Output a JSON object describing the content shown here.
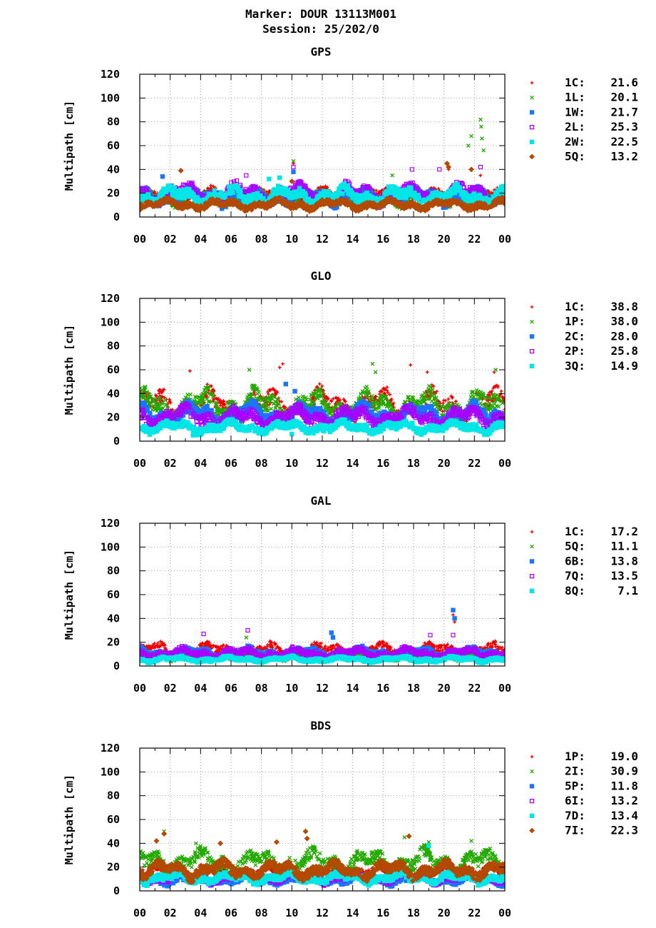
{
  "header": {
    "title_line1": "Marker: DOUR 13113M001",
    "title_line2": "Session: 25/202/0"
  },
  "chart_data": [
    {
      "type": "scatter",
      "title": "GPS",
      "ylabel": "Multipath [cm]",
      "xlabel": "",
      "ylim": [
        0,
        120
      ],
      "yticks": [
        0,
        20,
        40,
        60,
        80,
        100,
        120
      ],
      "xlim": [
        0,
        24
      ],
      "xtick_labels": [
        "00",
        "02",
        "04",
        "06",
        "08",
        "10",
        "12",
        "14",
        "16",
        "18",
        "20",
        "22",
        "00"
      ],
      "grid": true,
      "legend_position": "right",
      "series": [
        {
          "name": "1C",
          "label": "1C:",
          "stat": "21.6",
          "color": "#ee0000",
          "marker": "plus",
          "base": 21.6,
          "spikes": [
            [
              10.1,
              45
            ],
            [
              20.3,
              40
            ],
            [
              22.4,
              35
            ]
          ]
        },
        {
          "name": "1L",
          "label": "1L:",
          "stat": "20.1",
          "color": "#22aa00",
          "marker": "x",
          "base": 20.1,
          "spikes": [
            [
              10.1,
              47
            ],
            [
              16.6,
              35
            ],
            [
              21.6,
              60
            ],
            [
              21.8,
              68
            ],
            [
              22.4,
              82
            ],
            [
              22.45,
              76
            ],
            [
              22.5,
              66
            ],
            [
              22.6,
              56
            ],
            [
              21.4,
              8
            ]
          ]
        },
        {
          "name": "1W",
          "label": "1W:",
          "stat": "21.7",
          "color": "#1a75ff",
          "marker": "square",
          "base": 21.7,
          "spikes": [
            [
              1.5,
              34
            ],
            [
              10.1,
              38
            ]
          ]
        },
        {
          "name": "2L",
          "label": "2L:",
          "stat": "25.3",
          "color": "#aa00ff",
          "marker": "open-square",
          "base": 25.3,
          "spikes": [
            [
              7.0,
              35
            ],
            [
              10.1,
              42
            ],
            [
              17.9,
              40
            ],
            [
              19.7,
              40
            ],
            [
              22.4,
              42
            ]
          ]
        },
        {
          "name": "2W",
          "label": "2W:",
          "stat": "22.5",
          "color": "#00e5e5",
          "marker": "square",
          "base": 22.5,
          "spikes": [
            [
              8.5,
              32
            ],
            [
              9.2,
              33
            ]
          ]
        },
        {
          "name": "5Q",
          "label": "5Q:",
          "stat": "13.2",
          "color": "#b34a00",
          "marker": "diamond",
          "base": 13.2,
          "spikes": [
            [
              2.7,
              39
            ],
            [
              10.0,
              30
            ],
            [
              20.2,
              45
            ],
            [
              20.3,
              42
            ],
            [
              21.8,
              40
            ]
          ]
        }
      ]
    },
    {
      "type": "scatter",
      "title": "GLO",
      "ylabel": "Multipath [cm]",
      "xlabel": "",
      "ylim": [
        0,
        120
      ],
      "yticks": [
        0,
        20,
        40,
        60,
        80,
        100,
        120
      ],
      "xlim": [
        0,
        24
      ],
      "xtick_labels": [
        "00",
        "02",
        "04",
        "06",
        "08",
        "10",
        "12",
        "14",
        "16",
        "18",
        "20",
        "22",
        "00"
      ],
      "grid": true,
      "legend_position": "right",
      "series": [
        {
          "name": "1C",
          "label": "1C:",
          "stat": "38.8",
          "color": "#ee0000",
          "marker": "plus",
          "base": 38.8,
          "spikes": [
            [
              3.3,
              59
            ],
            [
              9.2,
              62
            ],
            [
              9.4,
              65
            ],
            [
              17.8,
              64
            ],
            [
              18.9,
              58
            ],
            [
              23.3,
              58
            ]
          ]
        },
        {
          "name": "1P",
          "label": "1P:",
          "stat": "38.0",
          "color": "#22aa00",
          "marker": "x",
          "base": 38.0,
          "spikes": [
            [
              7.2,
              60
            ],
            [
              15.3,
              65
            ],
            [
              15.5,
              58
            ],
            [
              23.4,
              60
            ]
          ]
        },
        {
          "name": "2C",
          "label": "2C:",
          "stat": "28.0",
          "color": "#1a75ff",
          "marker": "square",
          "base": 28.0,
          "spikes": [
            [
              9.6,
              48
            ],
            [
              10.2,
              42
            ]
          ]
        },
        {
          "name": "2P",
          "label": "2P:",
          "stat": "25.8",
          "color": "#aa00ff",
          "marker": "open-square",
          "base": 25.8,
          "spikes": [
            [
              10.7,
              12
            ]
          ]
        },
        {
          "name": "3Q",
          "label": "3Q:",
          "stat": "14.9",
          "color": "#00e5e5",
          "marker": "square",
          "base": 14.9,
          "spikes": [
            [
              3.5,
              5
            ],
            [
              10.0,
              6
            ]
          ]
        }
      ]
    },
    {
      "type": "scatter",
      "title": "GAL",
      "ylabel": "Multipath [cm]",
      "xlabel": "",
      "ylim": [
        0,
        120
      ],
      "yticks": [
        0,
        20,
        40,
        60,
        80,
        100,
        120
      ],
      "xlim": [
        0,
        24
      ],
      "xtick_labels": [
        "00",
        "02",
        "04",
        "06",
        "08",
        "10",
        "12",
        "14",
        "16",
        "18",
        "20",
        "22",
        "00"
      ],
      "grid": true,
      "legend_position": "right",
      "series": [
        {
          "name": "1C",
          "label": "1C:",
          "stat": "17.2",
          "color": "#ee0000",
          "marker": "plus",
          "base": 17.2,
          "spikes": [
            [
              20.6,
              43
            ],
            [
              20.7,
              37
            ]
          ]
        },
        {
          "name": "5Q",
          "label": "5Q:",
          "stat": "11.1",
          "color": "#22aa00",
          "marker": "x",
          "base": 11.1,
          "spikes": [
            [
              7.0,
              24
            ]
          ]
        },
        {
          "name": "6B",
          "label": "6B:",
          "stat": "13.8",
          "color": "#1a75ff",
          "marker": "square",
          "base": 13.8,
          "spikes": [
            [
              12.6,
              28
            ],
            [
              12.7,
              24
            ],
            [
              20.6,
              47
            ],
            [
              20.7,
              40
            ]
          ]
        },
        {
          "name": "7Q",
          "label": "7Q:",
          "stat": "13.5",
          "color": "#aa00ff",
          "marker": "open-square",
          "base": 13.5,
          "spikes": [
            [
              4.2,
              27
            ],
            [
              7.1,
              30
            ],
            [
              19.1,
              26
            ],
            [
              20.6,
              26
            ]
          ]
        },
        {
          "name": "8Q",
          "label": "8Q:",
          "stat": "7.1",
          "color": "#00e5e5",
          "marker": "square",
          "base": 7.1,
          "spikes": []
        }
      ]
    },
    {
      "type": "scatter",
      "title": "BDS",
      "ylabel": "Multipath [cm]",
      "xlabel": "",
      "ylim": [
        0,
        120
      ],
      "yticks": [
        0,
        20,
        40,
        60,
        80,
        100,
        120
      ],
      "xlim": [
        0,
        24
      ],
      "xtick_labels": [
        "00",
        "02",
        "04",
        "06",
        "08",
        "10",
        "12",
        "14",
        "16",
        "18",
        "20",
        "22",
        "00"
      ],
      "grid": true,
      "legend_position": "right",
      "series": [
        {
          "name": "1P",
          "label": "1P:",
          "stat": "19.0",
          "color": "#ee0000",
          "marker": "plus",
          "base": 19.0,
          "spikes": []
        },
        {
          "name": "2I",
          "label": "2I:",
          "stat": "30.9",
          "color": "#22aa00",
          "marker": "x",
          "base": 30.9,
          "spikes": [
            [
              1.6,
              50
            ],
            [
              3.7,
              40
            ],
            [
              17.4,
              45
            ],
            [
              19.0,
              41
            ],
            [
              21.8,
              42
            ]
          ]
        },
        {
          "name": "5P",
          "label": "5P:",
          "stat": "11.8",
          "color": "#1a75ff",
          "marker": "square",
          "base": 11.8,
          "spikes": []
        },
        {
          "name": "6I",
          "label": "6I:",
          "stat": "13.2",
          "color": "#aa00ff",
          "marker": "open-square",
          "base": 13.2,
          "spikes": []
        },
        {
          "name": "7D",
          "label": "7D:",
          "stat": "13.4",
          "color": "#00e5e5",
          "marker": "square",
          "base": 13.4,
          "spikes": [
            [
              19.0,
              38
            ]
          ]
        },
        {
          "name": "7I",
          "label": "7I:",
          "stat": "22.3",
          "color": "#b34a00",
          "marker": "diamond",
          "base": 22.3,
          "spikes": [
            [
              1.1,
              42
            ],
            [
              1.6,
              48
            ],
            [
              5.3,
              40
            ],
            [
              9.0,
              41
            ],
            [
              10.9,
              50
            ],
            [
              11.0,
              44
            ],
            [
              17.7,
              46
            ]
          ]
        }
      ]
    }
  ]
}
